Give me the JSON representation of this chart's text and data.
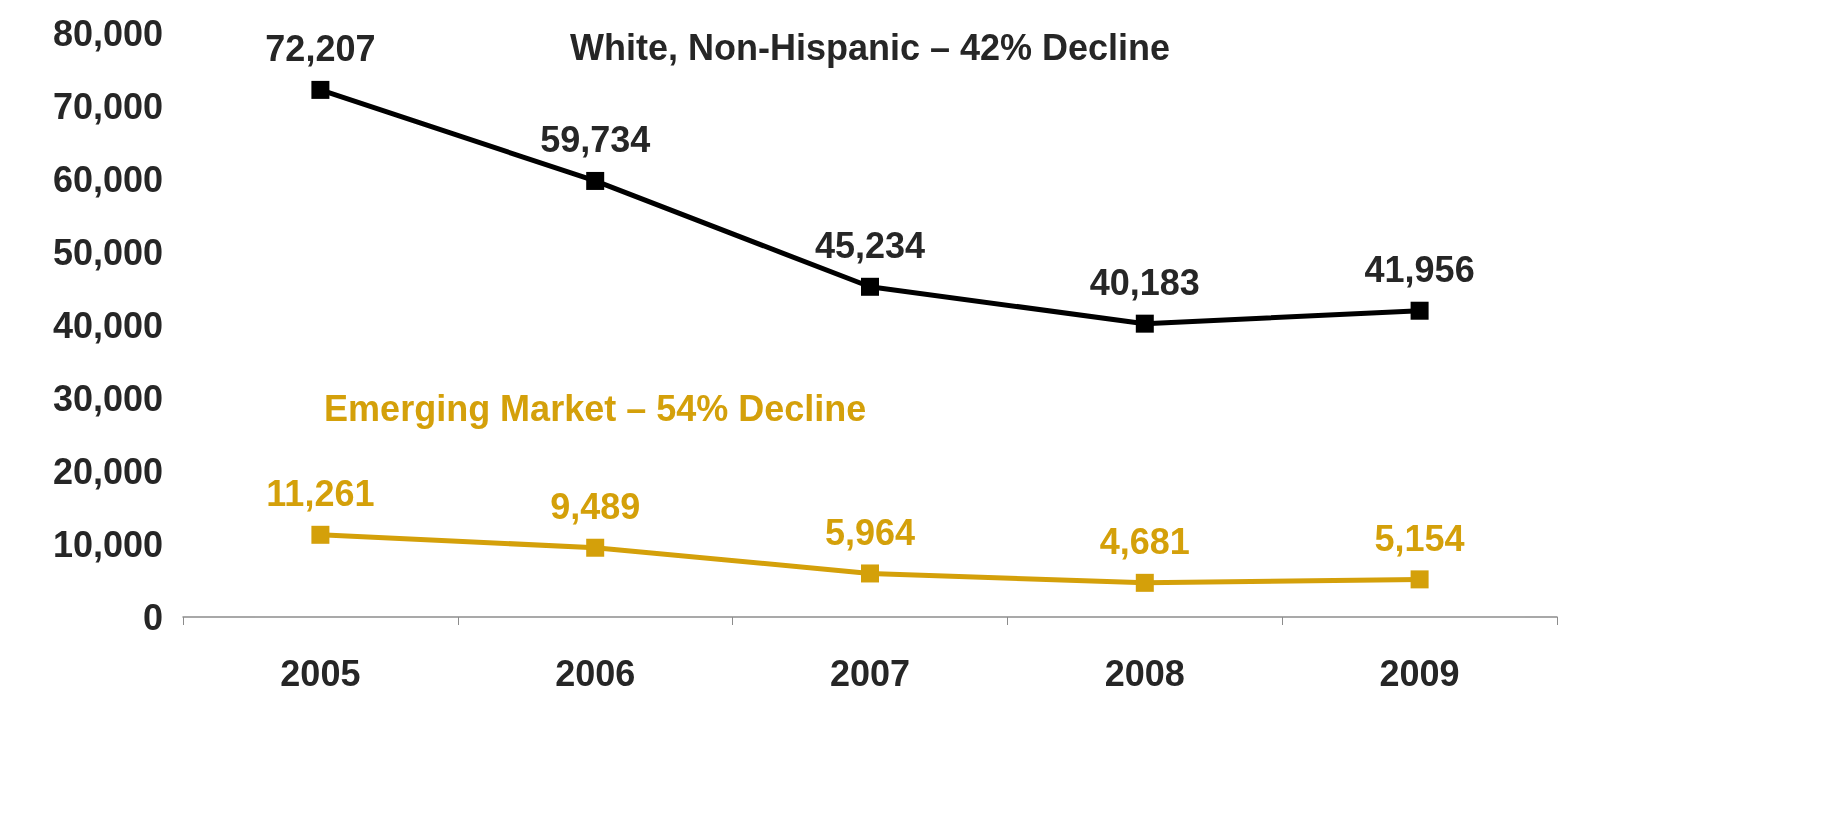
{
  "chart_data": {
    "type": "line",
    "categories": [
      "2005",
      "2006",
      "2007",
      "2008",
      "2009"
    ],
    "series": [
      {
        "name": "White, Non-Hispanic – 42% Decline",
        "color": "#000000",
        "values": [
          72207,
          59734,
          45234,
          40183,
          41956
        ],
        "value_labels": [
          "72,207",
          "59,734",
          "45,234",
          "40,183",
          "41,956"
        ]
      },
      {
        "name": "Emerging Market – 54% Decline",
        "color": "#d4a00a",
        "values": [
          11261,
          9489,
          5964,
          4681,
          5154
        ],
        "value_labels": [
          "11,261",
          "9,489",
          "5,964",
          "4,681",
          "5,154"
        ]
      }
    ],
    "ylim": [
      0,
      80000
    ],
    "yticks": [
      0,
      {
        "value": 10000,
        "label": "10,000"
      },
      {
        "value": 20000,
        "label": "20,000"
      },
      {
        "value": 30000,
        "label": "30,000"
      },
      {
        "value": 40000,
        "label": "40,000"
      },
      {
        "value": 50000,
        "label": "50,000"
      },
      {
        "value": 60000,
        "label": "60,000"
      },
      {
        "value": 70000,
        "label": "70,000"
      },
      {
        "value": 80000,
        "label": "80,000"
      }
    ],
    "grid": false,
    "legend": false,
    "marker": "square",
    "line_style": "solid"
  }
}
